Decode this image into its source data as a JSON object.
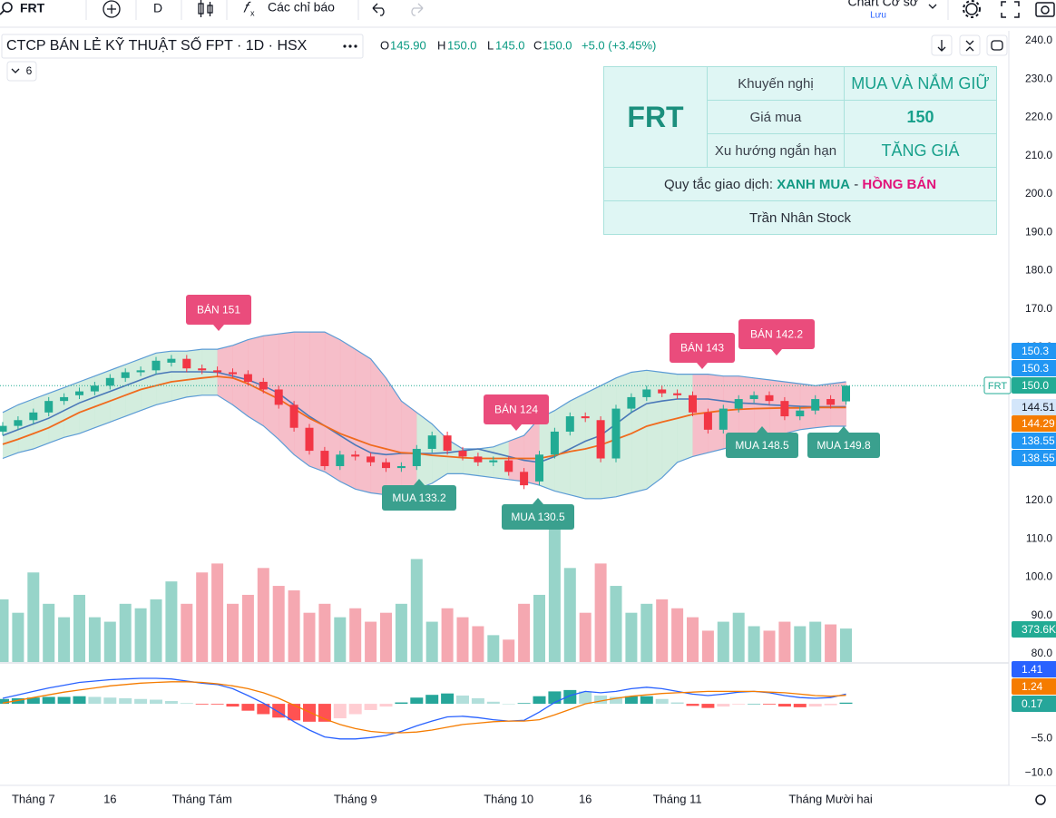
{
  "toolbar": {
    "symbol": "FRT",
    "interval": "D",
    "indicators": "Các chỉ báo",
    "layout_name": "Chart Cơ sở",
    "save": "Lưu"
  },
  "chart_data": {
    "type": "candlestick",
    "title": "CTCP BÁN LẺ KỸ THUẬT SỐ FPT · 1D · HSX",
    "legend": {
      "open_label": "O",
      "open": "145.90",
      "high_label": "H",
      "high": "150.0",
      "low_label": "L",
      "low": "145.0",
      "close_label": "C",
      "close": "150.0",
      "change": "+5.0 (+3.45%)"
    },
    "indicator_count": "6",
    "categories": [
      null,
      null,
      "Tháng 7",
      null,
      null,
      null,
      null,
      "16",
      null,
      null,
      null,
      null,
      null,
      "Tháng Tám",
      null,
      null,
      null,
      null,
      null,
      null,
      null,
      null,
      null,
      "Tháng 9",
      null,
      null,
      null,
      null,
      null,
      null,
      null,
      null,
      null,
      "Tháng 10",
      null,
      null,
      null,
      null,
      "16",
      null,
      null,
      null,
      null,
      null,
      "Tháng 11",
      null,
      null,
      null,
      null,
      null,
      null,
      null,
      null,
      null,
      "Tháng Mười hai",
      null
    ],
    "open": [
      138,
      139.5,
      141,
      143,
      146,
      147.5,
      148.5,
      150,
      152,
      153.5,
      154,
      156,
      157,
      154.5,
      154,
      153.5,
      153,
      151,
      149,
      145,
      139,
      133,
      129,
      132,
      131.5,
      130,
      128.5,
      129,
      133.5,
      137,
      133,
      131.5,
      130,
      130.5,
      127.5,
      125,
      132,
      138,
      142,
      141,
      131,
      144,
      147,
      149,
      148,
      147.5,
      143,
      138.5,
      144,
      146.5,
      147.5,
      146,
      142,
      143.5,
      146.5,
      145.9
    ],
    "high": [
      140.5,
      142,
      144,
      147,
      148,
      149.5,
      151,
      153,
      154.5,
      155,
      157.5,
      158,
      158,
      155.5,
      155,
      154.5,
      154,
      152,
      150,
      146,
      140,
      134,
      133,
      133,
      132.5,
      131,
      130,
      134.5,
      138,
      138,
      134,
      132.5,
      131.5,
      131.5,
      128.5,
      133,
      139,
      143,
      143,
      142,
      145,
      148,
      150,
      150,
      149,
      148.5,
      144,
      145,
      147.5,
      148.5,
      148.5,
      147,
      144.5,
      147.5,
      147.5,
      150
    ],
    "low": [
      137,
      138.5,
      140,
      142,
      145,
      146.5,
      147.5,
      149,
      151,
      152.5,
      153,
      155,
      153.5,
      153,
      152.5,
      152,
      150,
      148,
      144,
      138,
      132,
      128,
      128,
      130.5,
      129,
      127.5,
      127.5,
      128,
      132.5,
      132,
      130.5,
      129,
      129,
      126.5,
      123,
      124,
      131,
      137,
      140.5,
      130,
      130,
      143,
      146,
      147,
      146.5,
      142,
      137.5,
      137.5,
      143,
      145.5,
      145,
      141,
      141,
      142.5,
      144,
      145
    ],
    "close": [
      139.5,
      141,
      143,
      146,
      147,
      148.5,
      150,
      152,
      153.5,
      154,
      156.5,
      157,
      154.5,
      154,
      153.5,
      153,
      151,
      149,
      145,
      139,
      133,
      129,
      132,
      131.5,
      130,
      128.5,
      129,
      133.5,
      137,
      133,
      131.5,
      130,
      130.5,
      127.5,
      124,
      132,
      138,
      142,
      141.5,
      131,
      144,
      147,
      149,
      148,
      147.5,
      143,
      138.5,
      144,
      146.5,
      147.5,
      146,
      142,
      143.5,
      146.5,
      145,
      150
    ],
    "up_color": "#22ab94",
    "down_color": "#f23645",
    "ylim": [
      80,
      240
    ],
    "yticks": [
      {
        "value": 80,
        "label": "80.0"
      },
      {
        "value": 90,
        "label": "90.0"
      },
      {
        "value": 100,
        "label": "100.0"
      },
      {
        "value": 110,
        "label": "110.0"
      },
      {
        "value": 120,
        "label": "120.0"
      },
      {
        "value": 130,
        "label": "130.0"
      },
      {
        "value": 140,
        "label": "140.0"
      },
      {
        "value": 150,
        "label": "150.0"
      },
      {
        "value": 160,
        "label": "160.0"
      },
      {
        "value": 170,
        "label": "170.0"
      },
      {
        "value": 180,
        "label": "180.0"
      },
      {
        "value": 190,
        "label": "190.0"
      },
      {
        "value": 200,
        "label": "200.0"
      },
      {
        "value": 210,
        "label": "210.0"
      },
      {
        "value": 220,
        "label": "220.0"
      },
      {
        "value": 230,
        "label": "230.0"
      },
      {
        "value": 240,
        "label": "240.0"
      }
    ],
    "bb_upper": {
      "color": "#5b9bd5",
      "values": [
        143,
        145,
        146.5,
        148,
        149.5,
        151,
        152.5,
        154,
        155.5,
        157,
        158.5,
        159,
        159,
        159.5,
        159.5,
        160.5,
        162,
        163,
        163.5,
        164,
        164,
        164,
        162,
        159.5,
        157,
        152,
        146,
        143,
        140,
        136,
        133.5,
        133.5,
        134,
        135.5,
        137,
        141.5,
        143.5,
        146,
        148,
        150,
        152,
        153.5,
        154,
        153.5,
        153,
        153,
        153,
        152.5,
        152.5,
        152,
        151.5,
        151,
        150.5,
        150,
        150.5,
        151
      ]
    },
    "bb_lower": {
      "color": "#5b9bd5",
      "values": [
        131,
        132.5,
        133.5,
        135,
        136.5,
        137.5,
        139,
        140.5,
        142,
        143.5,
        145,
        146,
        147,
        147.5,
        147.5,
        145,
        142,
        139.5,
        136,
        132,
        129,
        127.5,
        125,
        123,
        122,
        121.5,
        122,
        123,
        124.5,
        127,
        127,
        126.5,
        126,
        125.5,
        125,
        124,
        122.5,
        121.5,
        120.5,
        120.5,
        121,
        122,
        123,
        126,
        130,
        131.5,
        132.5,
        133.5,
        134.5,
        135.5,
        136.5,
        137.5,
        138.5,
        139,
        139.4,
        139.4
      ]
    },
    "bb_basis": {
      "color": "#4a78b8",
      "values": [
        137,
        138.5,
        140,
        141.5,
        143.5,
        145.5,
        147,
        148.5,
        150,
        151.5,
        153,
        153.6,
        153.6,
        153.6,
        153.5,
        152.5,
        151.5,
        150,
        148,
        145,
        142,
        139.5,
        137,
        134.5,
        132.5,
        132,
        132.3,
        132.3,
        132.3,
        132.5,
        133,
        133.5,
        132.5,
        131.5,
        130.5,
        130,
        131.5,
        133.5,
        135.5,
        137,
        140,
        143,
        145.3,
        146,
        146.5,
        146.5,
        146.5,
        146,
        145.5,
        145.3,
        145,
        144.8,
        144.6,
        144.5,
        144.5,
        144.51
      ]
    },
    "ma": {
      "color": "#f06a1d",
      "values": [
        134.7,
        136,
        137.5,
        139,
        141,
        143,
        144.5,
        146,
        147.5,
        149,
        150,
        151,
        151.5,
        152,
        152.4,
        152,
        150.5,
        148.5,
        146.5,
        144,
        141.5,
        139.5,
        137.5,
        136,
        134.5,
        133.5,
        132.5,
        132.3,
        131.8,
        131.5,
        131.2,
        131,
        131,
        131,
        131,
        131,
        131.8,
        132.8,
        133.5,
        134.5,
        136,
        137.5,
        139.4,
        140.5,
        141.5,
        142.5,
        143,
        143.5,
        143.8,
        144,
        144.1,
        144.2,
        144.2,
        144.3,
        144.3,
        144.29
      ]
    },
    "band_colors": [
      "#cbead8",
      "#cbead8",
      "#cbead8",
      "#cbead8",
      "#cbead8",
      "#cbead8",
      "#cbead8",
      "#cbead8",
      "#cbead8",
      "#cbead8",
      "#cbead8",
      "#cbead8",
      "#cbead8",
      "#cbead8",
      "#f4b3bf",
      "#f4b3bf",
      "#f4b3bf",
      "#f4b3bf",
      "#f4b3bf",
      "#f4b3bf",
      "#f4b3bf",
      "#f4b3bf",
      "#f4b3bf",
      "#f4b3bf",
      "#f4b3bf",
      "#f4b3bf",
      "#f4b3bf",
      "#cbead8",
      "#cbead8",
      "#cbead8",
      "#cbead8",
      "#cbead8",
      "#cbead8",
      "#f4b3bf",
      "#f4b3bf",
      "#cbead8",
      "#cbead8",
      "#cbead8",
      "#cbead8",
      "#cbead8",
      "#cbead8",
      "#cbead8",
      "#cbead8",
      "#cbead8",
      "#cbead8",
      "#f4b3bf",
      "#f4b3bf",
      "#f4b3bf",
      "#f4b3bf",
      "#f4b3bf",
      "#f4b3bf",
      "#f4b3bf",
      "#f4b3bf",
      "#f4b3bf",
      "#f4b3bf",
      "#f4b3bf"
    ],
    "last_price": {
      "symbol": "FRT",
      "value": 150,
      "label": "150.0",
      "color": "#22ab94"
    },
    "price_badges": [
      {
        "value": 150.3,
        "label": "150.3",
        "color": "#2196f3",
        "text_color": "#ffffff"
      },
      {
        "value": 150.3,
        "label": "150.3",
        "color": "#2196f3",
        "text_color": "#ffffff"
      },
      {
        "value": 144.51,
        "label": "144.51",
        "color": "#d3e6fa",
        "text_color": "#131722"
      },
      {
        "value": 144.29,
        "label": "144.29",
        "color": "#f57c00",
        "text_color": "#ffffff"
      },
      {
        "value": 138.55,
        "label": "138.55",
        "color": "#2196f3",
        "text_color": "#ffffff"
      },
      {
        "value": 138.55,
        "label": "138.55",
        "color": "#2196f3",
        "text_color": "#ffffff"
      }
    ],
    "volume": {
      "vlim": [
        0,
        1600000
      ],
      "up_color": "#97d4c9",
      "down_color": "#f5a8b1",
      "values": [
        700000,
        550000,
        1000000,
        650000,
        500000,
        750000,
        500000,
        450000,
        650000,
        600000,
        700000,
        900000,
        650000,
        1000000,
        1100000,
        650000,
        750000,
        1050000,
        850000,
        800000,
        550000,
        650000,
        500000,
        600000,
        450000,
        550000,
        650000,
        1150000,
        450000,
        600000,
        500000,
        400000,
        300000,
        250000,
        650000,
        750000,
        1600000,
        1050000,
        550000,
        1100000,
        850000,
        550000,
        650000,
        700000,
        600000,
        500000,
        350000,
        450000,
        550000,
        400000,
        350000,
        450000,
        400000,
        450000,
        420000,
        373600
      ],
      "badge": {
        "value": 373600,
        "label": "373.6K",
        "color": "#22ab94"
      }
    },
    "macd": {
      "ylim": [
        -11.7,
        5.8
      ],
      "yticks": [
        {
          "value": -5,
          "label": "−5.0"
        },
        {
          "value": -10,
          "label": "−10.0"
        }
      ],
      "macd": {
        "color": "#2962ff",
        "values": [
          0.8,
          1.3,
          1.8,
          2.3,
          2.7,
          3.1,
          3.3,
          3.5,
          3.6,
          3.7,
          3.7,
          3.6,
          3.3,
          3.0,
          2.8,
          2.2,
          1.2,
          0.1,
          -1.2,
          -2.6,
          -3.8,
          -4.8,
          -5.1,
          -5.1,
          -4.9,
          -4.6,
          -4.0,
          -3.2,
          -2.5,
          -1.9,
          -1.8,
          -2.0,
          -2.3,
          -2.5,
          -2.4,
          -1.2,
          0.2,
          1.2,
          1.8,
          1.6,
          1.8,
          2.2,
          2.4,
          2.2,
          1.8,
          1.4,
          1.2,
          1.4,
          1.7,
          1.8,
          1.6,
          1.2,
          0.9,
          0.8,
          0.9,
          1.41
        ]
      },
      "signal": {
        "color": "#f57c00",
        "values": [
          0.1,
          0.5,
          0.9,
          1.3,
          1.7,
          2.0,
          2.3,
          2.6,
          2.8,
          3.0,
          3.1,
          3.2,
          3.2,
          3.1,
          2.9,
          2.6,
          2.2,
          1.6,
          0.8,
          -0.2,
          -1.2,
          -2.2,
          -3.0,
          -3.6,
          -4.0,
          -4.2,
          -4.2,
          -4.1,
          -3.8,
          -3.4,
          -3.0,
          -2.8,
          -2.6,
          -2.5,
          -2.5,
          -2.3,
          -1.6,
          -0.8,
          0.0,
          0.4,
          0.8,
          1.1,
          1.3,
          1.5,
          1.6,
          1.7,
          1.8,
          1.8,
          1.8,
          1.8,
          1.7,
          1.6,
          1.4,
          1.2,
          1.1,
          1.24
        ]
      },
      "hist": {
        "colors": {
          "up_strong": "#26a69a",
          "up_weak": "#b2dfdb",
          "down_strong": "#ff5252",
          "down_weak": "#ffcdd2"
        },
        "values": [
          0.7,
          0.8,
          0.9,
          1.0,
          1.0,
          1.1,
          1.0,
          0.9,
          0.8,
          0.7,
          0.6,
          0.4,
          0.1,
          -0.1,
          -0.1,
          -0.4,
          -1.0,
          -1.5,
          -2.0,
          -2.4,
          -2.6,
          -2.6,
          -2.1,
          -1.5,
          -0.9,
          -0.4,
          0.2,
          0.9,
          1.3,
          1.5,
          1.2,
          0.8,
          0.3,
          0.0,
          0.1,
          1.1,
          1.8,
          2.0,
          1.8,
          1.2,
          1.0,
          1.1,
          1.1,
          0.7,
          0.2,
          -0.3,
          -0.6,
          -0.4,
          -0.1,
          0.0,
          -0.1,
          -0.4,
          -0.5,
          -0.4,
          -0.2,
          0.17
        ]
      },
      "badges": [
        {
          "value": 1.41,
          "label": "1.41",
          "color": "#2962ff"
        },
        {
          "value": 1.24,
          "label": "1.24",
          "color": "#f57c00"
        },
        {
          "value": 0.17,
          "label": "0.17",
          "color": "#26a69a"
        }
      ]
    }
  },
  "signals": {
    "sell_color": "#ea4c7c",
    "buy_color": "#3aa08e",
    "items": [
      {
        "text": "BÁN 151",
        "side": "sell"
      },
      {
        "text": "BÁN 124",
        "side": "sell"
      },
      {
        "text": "BÁN 143",
        "side": "sell"
      },
      {
        "text": "BÁN 142.2",
        "side": "sell"
      },
      {
        "text": "MUA 133.2",
        "side": "buy"
      },
      {
        "text": "MUA 130.5",
        "side": "buy"
      },
      {
        "text": "MUA 148.5",
        "side": "buy"
      },
      {
        "text": "MUA 149.8",
        "side": "buy"
      }
    ]
  },
  "info_table": {
    "symbol": "FRT",
    "rows": [
      [
        "Khuyến nghị",
        "MUA VÀ NẮM GIỮ"
      ],
      [
        "Giá mua",
        "150"
      ],
      [
        "Xu hướng ngắn hạn",
        "TĂNG GIÁ"
      ]
    ],
    "rule_prefix": "Quy tắc giao dịch: ",
    "rule_buy": "XANH MUA",
    "rule_sep": " - ",
    "rule_sell": "HỒNG BÁN",
    "author": "Trần Nhân Stock"
  }
}
